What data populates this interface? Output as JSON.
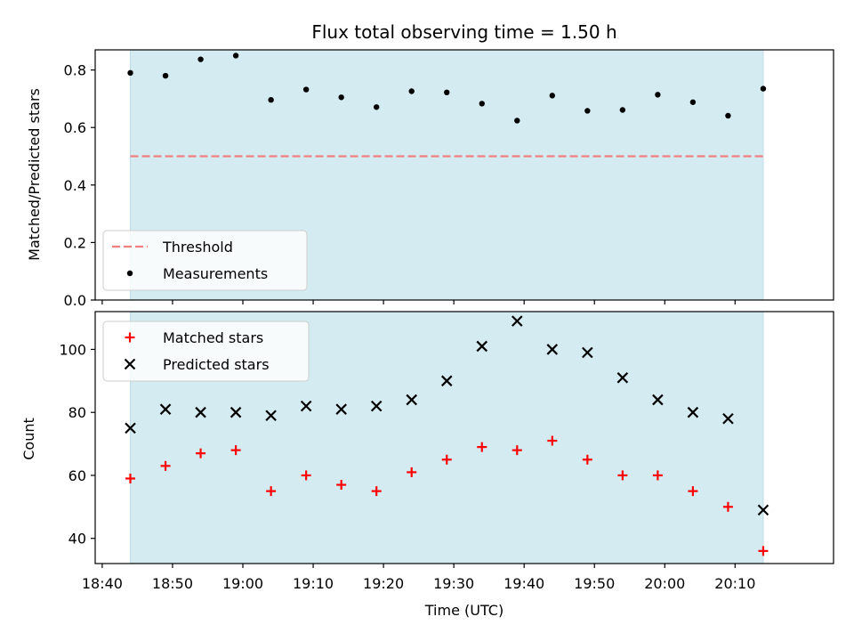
{
  "chart_data": [
    {
      "type": "scatter",
      "title": "Flux total observing time = 1.50 h",
      "xlabel": "",
      "ylabel": "Matched/Predicted stars",
      "ylim": [
        0,
        0.87
      ],
      "yticks": [
        0.0,
        0.2,
        0.4,
        0.6,
        0.8
      ],
      "ytick_labels": [
        "0.0",
        "0.2",
        "0.4",
        "0.6",
        "0.8"
      ],
      "xlim": [
        "18:39",
        "20:24"
      ],
      "shaded_span": [
        "18:44",
        "20:14"
      ],
      "shade_color": "#d4ebf1",
      "threshold": 0.5,
      "threshold_color": "#f08080",
      "legend_position": "lower-left",
      "legend": [
        "Threshold",
        "Measurements"
      ],
      "series": [
        {
          "name": "Measurements",
          "color": "#000000",
          "marker": "dot",
          "x": [
            "18:44",
            "18:49",
            "18:54",
            "18:59",
            "19:04",
            "19:09",
            "19:14",
            "19:19",
            "19:24",
            "19:29",
            "19:34",
            "19:39",
            "19:44",
            "19:49",
            "19:54",
            "19:59",
            "20:04",
            "20:09",
            "20:14"
          ],
          "y": [
            0.79,
            0.78,
            0.837,
            0.85,
            0.696,
            0.732,
            0.705,
            0.671,
            0.726,
            0.722,
            0.683,
            0.624,
            0.711,
            0.658,
            0.661,
            0.714,
            0.688,
            0.641,
            0.735
          ]
        }
      ]
    },
    {
      "type": "scatter",
      "title": "",
      "xlabel": "Time (UTC)",
      "ylabel": "Count",
      "ylim": [
        32,
        112
      ],
      "yticks": [
        40,
        60,
        80,
        100
      ],
      "ytick_labels": [
        "40",
        "60",
        "80",
        "100"
      ],
      "xlim": [
        "18:39",
        "20:24"
      ],
      "xticks": [
        "18:40",
        "18:50",
        "19:00",
        "19:10",
        "19:20",
        "19:30",
        "19:40",
        "19:50",
        "20:00",
        "20:10"
      ],
      "xtick_labels": [
        "18:40",
        "18:50",
        "19:00",
        "19:10",
        "19:20",
        "19:30",
        "19:40",
        "19:50",
        "20:00",
        "20:10"
      ],
      "shaded_span": [
        "18:44",
        "20:14"
      ],
      "shade_color": "#d4ebf1",
      "legend_position": "top-left",
      "legend": [
        "Matched stars",
        "Predicted stars"
      ],
      "series": [
        {
          "name": "Matched stars",
          "color": "#ff0000",
          "marker": "plus",
          "x": [
            "18:44",
            "18:49",
            "18:54",
            "18:59",
            "19:04",
            "19:09",
            "19:14",
            "19:19",
            "19:24",
            "19:29",
            "19:34",
            "19:39",
            "19:44",
            "19:49",
            "19:54",
            "19:59",
            "20:04",
            "20:09",
            "20:14"
          ],
          "y": [
            59,
            63,
            67,
            68,
            55,
            60,
            57,
            55,
            61,
            65,
            69,
            68,
            71,
            65,
            60,
            60,
            55,
            50,
            36
          ]
        },
        {
          "name": "Predicted stars",
          "color": "#000000",
          "marker": "x",
          "x": [
            "18:44",
            "18:49",
            "18:54",
            "18:59",
            "19:04",
            "19:09",
            "19:14",
            "19:19",
            "19:24",
            "19:29",
            "19:34",
            "19:39",
            "19:44",
            "19:49",
            "19:54",
            "19:59",
            "20:04",
            "20:09",
            "20:14"
          ],
          "y": [
            75,
            81,
            80,
            80,
            79,
            82,
            81,
            82,
            84,
            90,
            101,
            109,
            100,
            99,
            91,
            84,
            80,
            78,
            49
          ]
        }
      ]
    }
  ]
}
